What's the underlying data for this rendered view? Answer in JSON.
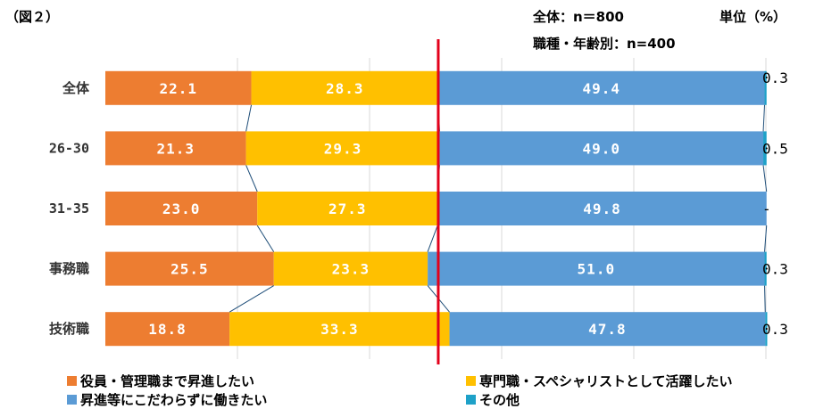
{
  "header": {
    "figure_label": "（図２）",
    "n_total": "全体：n＝800",
    "n_group": "職種・年齢別：n=400",
    "unit": "単位（%）"
  },
  "colors": {
    "executive": "#ED7D31",
    "specialist": "#FFC000",
    "noPromotion": "#5B9BD5",
    "other": "#1EA1C8",
    "marker": "#E3001B",
    "connector": "#1F4E79",
    "grid": "#D9D9D9"
  },
  "chart_data": {
    "type": "bar",
    "stacked": true,
    "orientation": "horizontal",
    "percent_stacked": true,
    "xlim": [
      0,
      100
    ],
    "categories": [
      "全体",
      "26-30",
      "31-35",
      "事務職",
      "技術職"
    ],
    "series": [
      {
        "name": "役員・管理職まで昇進したい",
        "key": "executive",
        "values": [
          22.1,
          21.3,
          23.0,
          25.5,
          18.8
        ],
        "labels": [
          "22.1",
          "21.3",
          "23.0",
          "25.5",
          "18.8"
        ]
      },
      {
        "name": "専門職・スペシャリストとして活躍したい",
        "key": "specialist",
        "values": [
          28.3,
          29.3,
          27.3,
          23.3,
          33.3
        ],
        "labels": [
          "28.3",
          "29.3",
          "27.3",
          "23.3",
          "33.3"
        ]
      },
      {
        "name": "昇進等にこだわらずに働きたい",
        "key": "noPromotion",
        "values": [
          49.4,
          49.0,
          49.8,
          51.0,
          47.8
        ],
        "labels": [
          "49.4",
          "49.0",
          "49.8",
          "51.0",
          "47.8"
        ]
      },
      {
        "name": "その他",
        "key": "other",
        "values": [
          0.3,
          0.5,
          0.0,
          0.3,
          0.3
        ],
        "labels": [
          "0.3",
          "0.5",
          "-",
          "0.3",
          "0.3"
        ]
      }
    ],
    "reference_line_value": 50.4,
    "series_lines": true,
    "legend_position": "bottom"
  }
}
